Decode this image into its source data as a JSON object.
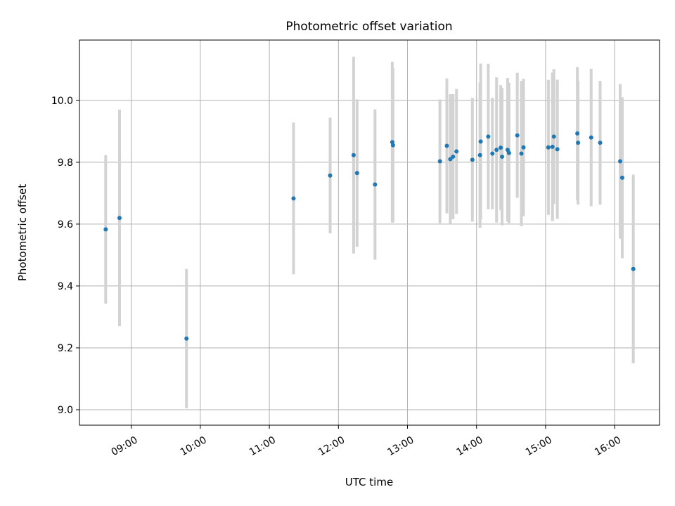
{
  "chart_data": {
    "type": "scatter",
    "title": "Photometric offset variation",
    "xlabel": "UTC time",
    "ylabel": "Photometric offset",
    "grid": true,
    "xlim": [
      8.25,
      16.65
    ],
    "ylim": [
      8.95,
      10.195
    ],
    "x_ticks": [
      {
        "value": 9,
        "label": "09:00"
      },
      {
        "value": 10,
        "label": "10:00"
      },
      {
        "value": 11,
        "label": "11:00"
      },
      {
        "value": 12,
        "label": "12:00"
      },
      {
        "value": 13,
        "label": "13:00"
      },
      {
        "value": 14,
        "label": "14:00"
      },
      {
        "value": 15,
        "label": "15:00"
      },
      {
        "value": 16,
        "label": "16:00"
      }
    ],
    "y_ticks": [
      {
        "value": 9.0,
        "label": "9.0"
      },
      {
        "value": 9.2,
        "label": "9.2"
      },
      {
        "value": 9.4,
        "label": "9.4"
      },
      {
        "value": 9.6,
        "label": "9.6"
      },
      {
        "value": 9.8,
        "label": "9.8"
      },
      {
        "value": 10.0,
        "label": "10.0"
      }
    ],
    "colors": {
      "point": "#1f77b4",
      "errorbar": "#d3d3d3",
      "grid": "#b0b0b0"
    },
    "points": [
      {
        "x": 8.63,
        "y": 9.583,
        "err": 0.24
      },
      {
        "x": 8.83,
        "y": 9.62,
        "err": 0.35
      },
      {
        "x": 9.8,
        "y": 9.23,
        "err": 0.225
      },
      {
        "x": 11.35,
        "y": 9.683,
        "err": 0.245
      },
      {
        "x": 11.88,
        "y": 9.757,
        "err": 0.187
      },
      {
        "x": 12.22,
        "y": 9.823,
        "err": 0.318
      },
      {
        "x": 12.27,
        "y": 9.765,
        "err": 0.238
      },
      {
        "x": 12.53,
        "y": 9.728,
        "err": 0.243
      },
      {
        "x": 12.78,
        "y": 9.865,
        "err": 0.26
      },
      {
        "x": 12.79,
        "y": 9.855,
        "err": 0.25
      },
      {
        "x": 13.47,
        "y": 9.803,
        "err": 0.2
      },
      {
        "x": 13.57,
        "y": 9.853,
        "err": 0.218
      },
      {
        "x": 13.62,
        "y": 9.81,
        "err": 0.21
      },
      {
        "x": 13.66,
        "y": 9.818,
        "err": 0.202
      },
      {
        "x": 13.71,
        "y": 9.835,
        "err": 0.202
      },
      {
        "x": 13.94,
        "y": 9.808,
        "err": 0.2
      },
      {
        "x": 14.05,
        "y": 9.823,
        "err": 0.235
      },
      {
        "x": 14.06,
        "y": 9.867,
        "err": 0.252
      },
      {
        "x": 14.17,
        "y": 9.883,
        "err": 0.235
      },
      {
        "x": 14.23,
        "y": 9.828,
        "err": 0.18
      },
      {
        "x": 14.29,
        "y": 9.84,
        "err": 0.235
      },
      {
        "x": 14.35,
        "y": 9.847,
        "err": 0.202
      },
      {
        "x": 14.37,
        "y": 9.818,
        "err": 0.222
      },
      {
        "x": 14.45,
        "y": 9.84,
        "err": 0.232
      },
      {
        "x": 14.47,
        "y": 9.83,
        "err": 0.227
      },
      {
        "x": 14.59,
        "y": 9.887,
        "err": 0.202
      },
      {
        "x": 14.65,
        "y": 9.828,
        "err": 0.235
      },
      {
        "x": 14.68,
        "y": 9.848,
        "err": 0.222
      },
      {
        "x": 15.04,
        "y": 9.848,
        "err": 0.218
      },
      {
        "x": 15.1,
        "y": 9.85,
        "err": 0.24
      },
      {
        "x": 15.12,
        "y": 9.883,
        "err": 0.218
      },
      {
        "x": 15.17,
        "y": 9.842,
        "err": 0.225
      },
      {
        "x": 15.46,
        "y": 9.893,
        "err": 0.215
      },
      {
        "x": 15.47,
        "y": 9.863,
        "err": 0.2
      },
      {
        "x": 15.66,
        "y": 9.88,
        "err": 0.222
      },
      {
        "x": 15.79,
        "y": 9.863,
        "err": 0.2
      },
      {
        "x": 16.08,
        "y": 9.803,
        "err": 0.25
      },
      {
        "x": 16.11,
        "y": 9.75,
        "err": 0.26
      },
      {
        "x": 16.27,
        "y": 9.455,
        "err": 0.305
      }
    ]
  }
}
